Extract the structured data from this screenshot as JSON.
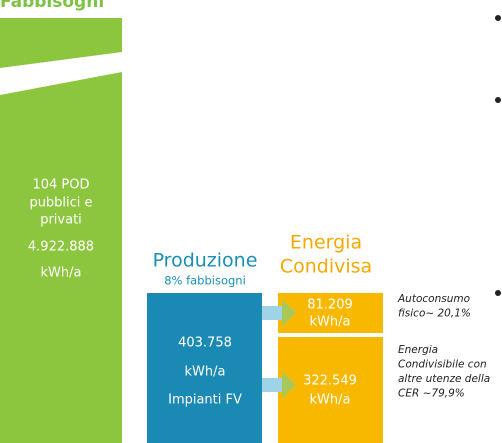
{
  "title": "Fabbisogni",
  "fabbisogni": {
    "lines": [
      "104 POD",
      "pubblici e",
      "privati",
      "4.922.888",
      "kWh/a"
    ]
  },
  "produzione": {
    "title": "Produzione",
    "subtitle": "8% fabbisogni",
    "lines": [
      "403.758",
      "kWh/a",
      "Impianti FV"
    ]
  },
  "condivisa": {
    "title": [
      "Energia",
      "Condivisa"
    ],
    "boxes": [
      {
        "lines": [
          "81.209",
          "kWh/a"
        ],
        "note": [
          "Autoconsumo",
          "fisico~ 20,1%"
        ]
      },
      {
        "lines": [
          "322.549",
          "kWh/a"
        ],
        "note": [
          "Energia",
          "Condivisibile con",
          "altre utenze della",
          "CER ~79,9%"
        ]
      }
    ]
  }
}
